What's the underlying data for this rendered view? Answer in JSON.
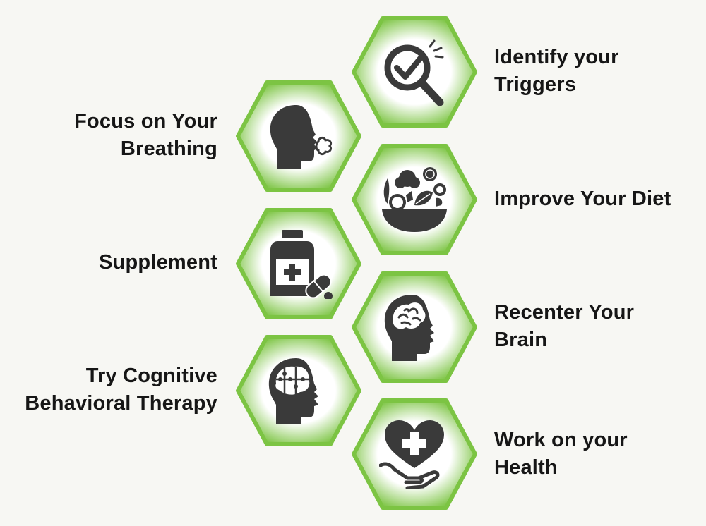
{
  "colors": {
    "hex_edge": "#7cc443",
    "hex_center": "#ffffff",
    "icon": "#3a3a3a",
    "text": "#161616",
    "background": "#f7f7f3"
  },
  "items": [
    {
      "icon": "magnifier-check-icon",
      "lines": [
        "Identify your",
        "Triggers"
      ]
    },
    {
      "icon": "head-breathing-icon",
      "lines": [
        "Focus on Your",
        "Breathing"
      ]
    },
    {
      "icon": "salad-bowl-icon",
      "lines": [
        "Improve Your Diet"
      ]
    },
    {
      "icon": "medicine-bottle-icon",
      "lines": [
        "Supplement"
      ]
    },
    {
      "icon": "brain-head-icon",
      "lines": [
        "Recenter Your",
        "Brain"
      ]
    },
    {
      "icon": "puzzle-brain-icon",
      "lines": [
        "Try Cognitive",
        "Behavioral Therapy"
      ]
    },
    {
      "icon": "heart-hand-icon",
      "lines": [
        "Work on your",
        "Health"
      ]
    }
  ]
}
